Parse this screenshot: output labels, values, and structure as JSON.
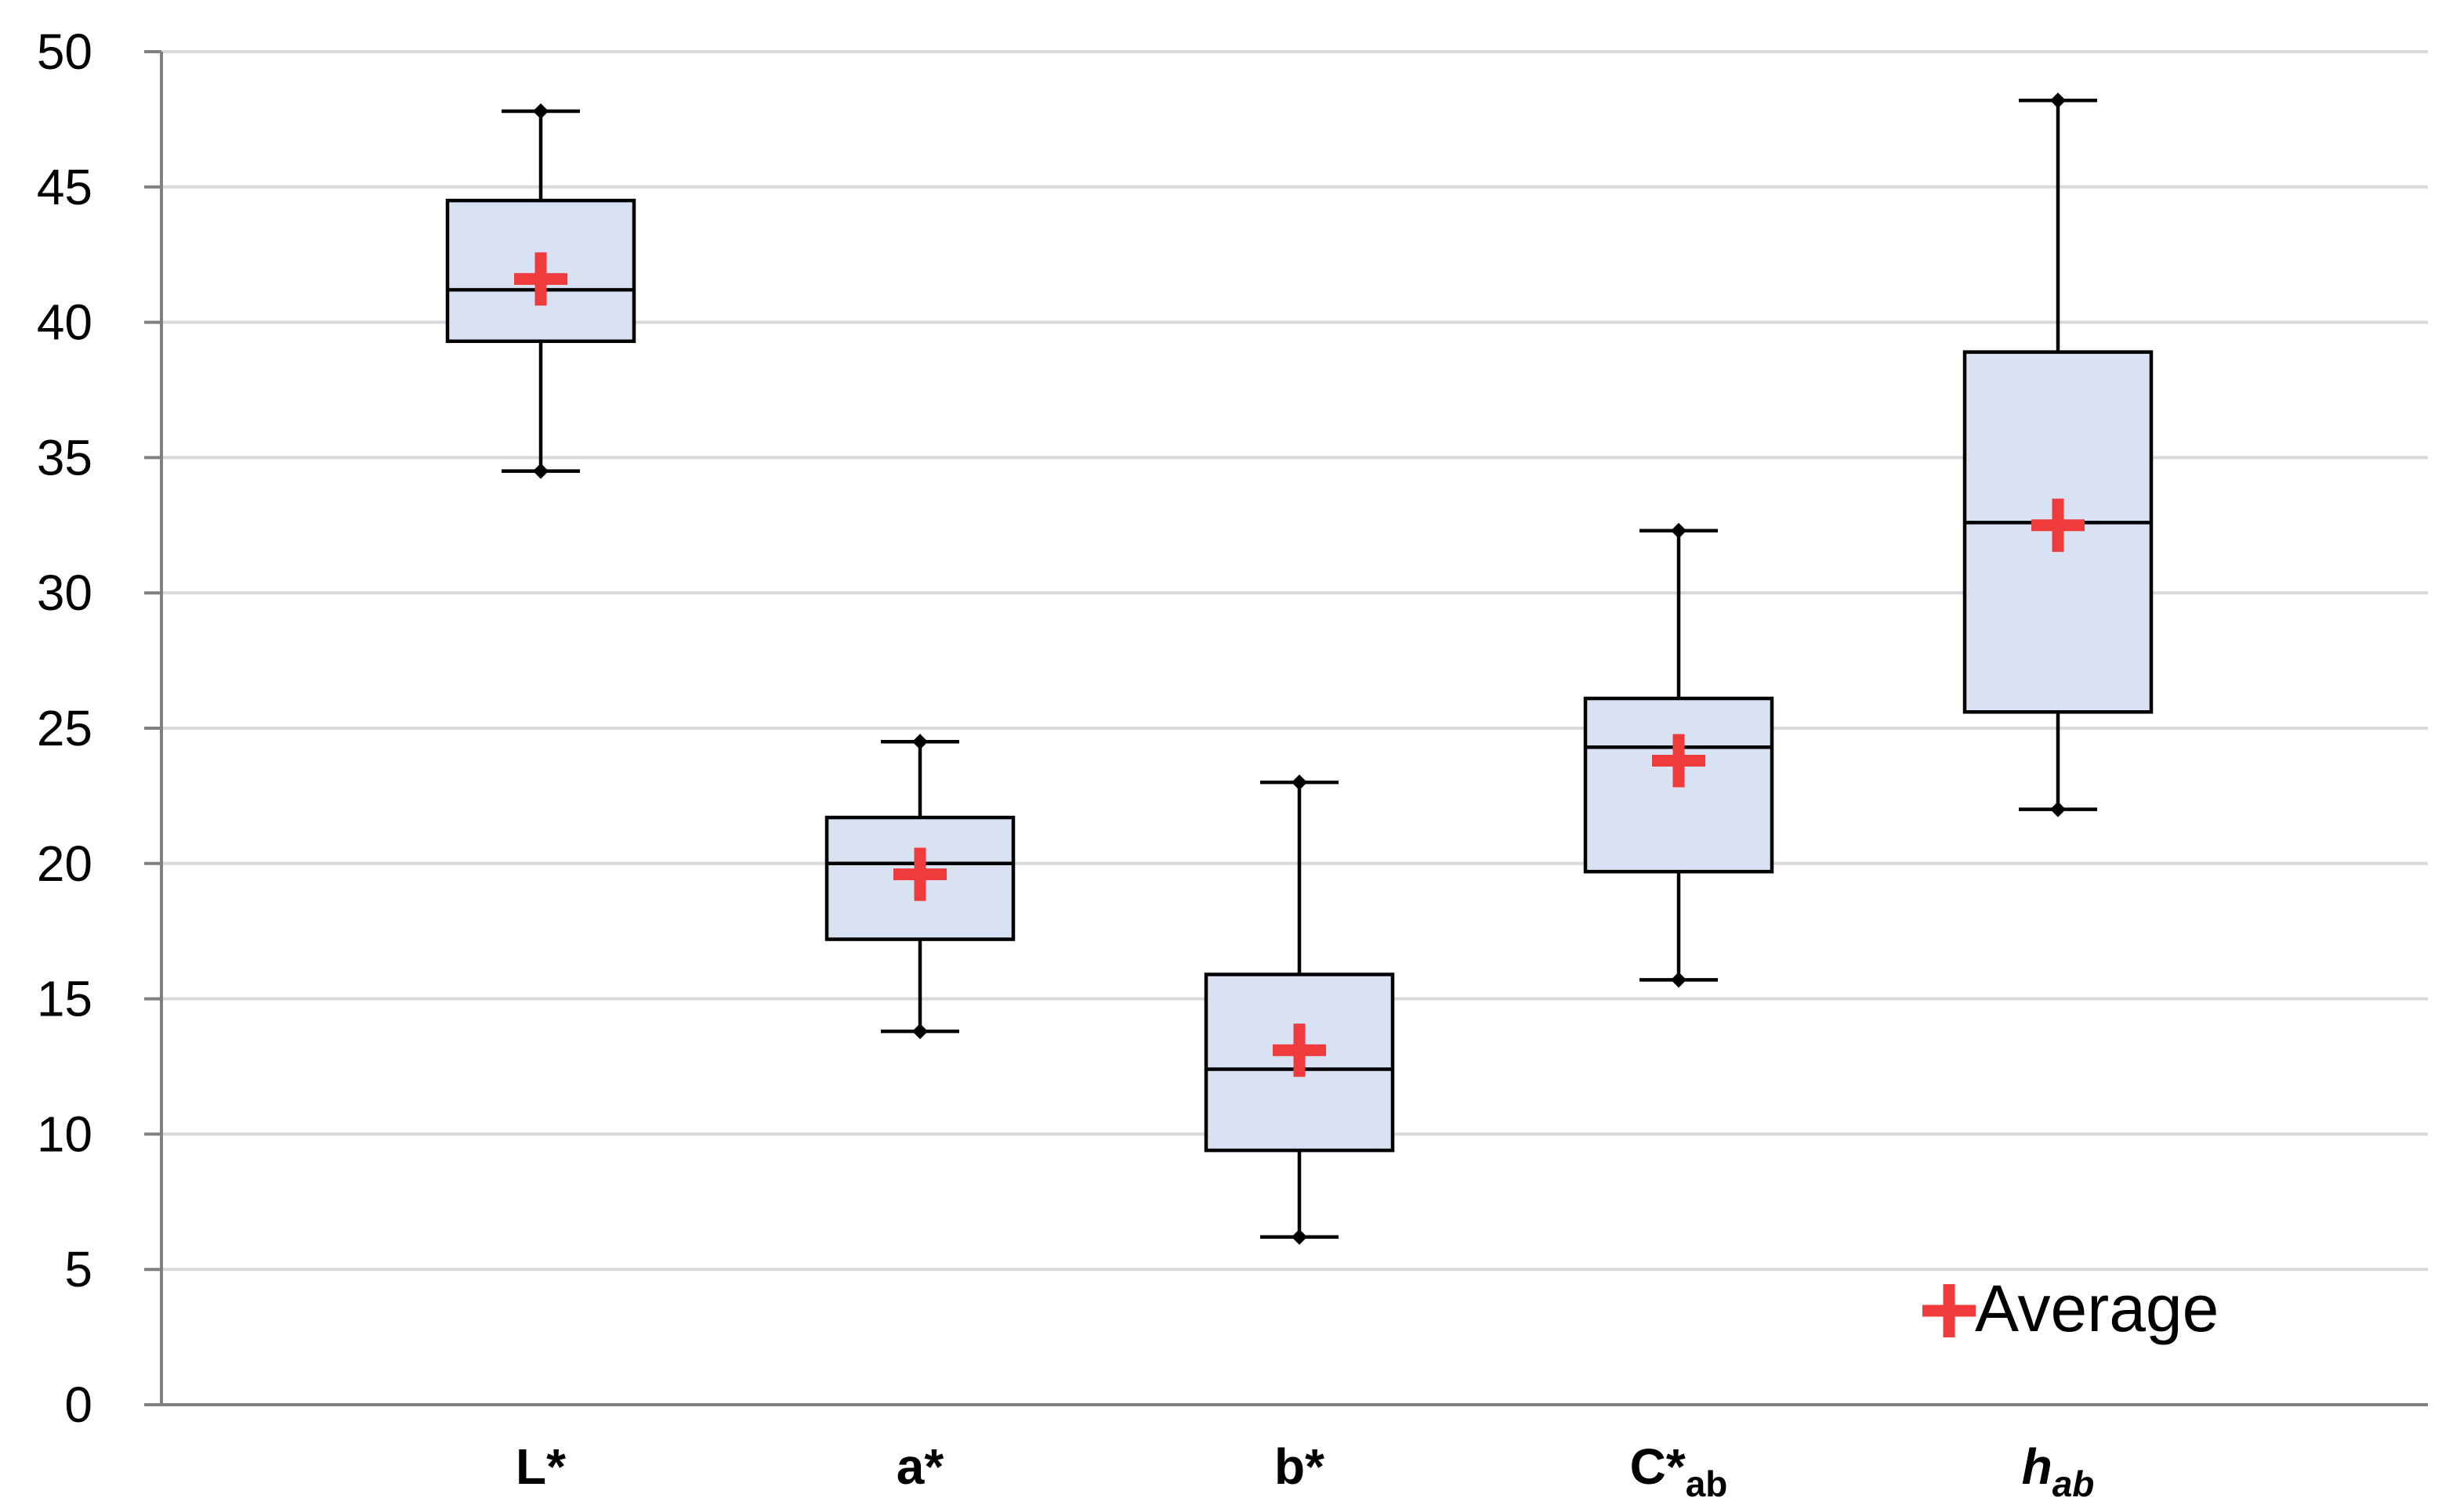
{
  "chart_data": {
    "type": "boxplot",
    "title": "",
    "xlabel": "",
    "ylabel": "",
    "ylim": [
      0,
      50
    ],
    "yticks": [
      0,
      5,
      10,
      15,
      20,
      25,
      30,
      35,
      40,
      45,
      50
    ],
    "grid": true,
    "legend": {
      "position": "bottom-right",
      "label": "Average"
    },
    "categories": [
      {
        "main": "L*",
        "sub": "",
        "italic": false
      },
      {
        "main": "a*",
        "sub": "",
        "italic": false
      },
      {
        "main": "b*",
        "sub": "",
        "italic": false
      },
      {
        "main": "C*",
        "sub": "ab",
        "italic": false
      },
      {
        "main": "h",
        "sub": "ab",
        "italic": true
      }
    ],
    "boxes": [
      {
        "min": 34.5,
        "q1": 39.3,
        "median": 41.2,
        "q3": 44.5,
        "max": 47.8,
        "mean": 41.6
      },
      {
        "min": 13.8,
        "q1": 17.2,
        "median": 20.0,
        "q3": 21.7,
        "max": 24.5,
        "mean": 19.6
      },
      {
        "min": 6.2,
        "q1": 9.4,
        "median": 12.4,
        "q3": 15.9,
        "max": 23.0,
        "mean": 13.1
      },
      {
        "min": 15.7,
        "q1": 19.7,
        "median": 24.3,
        "q3": 26.1,
        "max": 32.3,
        "mean": 23.8
      },
      {
        "min": 22.0,
        "q1": 25.6,
        "median": 32.6,
        "q3": 38.9,
        "max": 48.2,
        "mean": 32.5
      }
    ],
    "colors": {
      "box_fill": "#d9e2f3",
      "box_stroke": "#000000",
      "mean_marker": "#ef3b3b",
      "grid": "#d9d9d9",
      "axis": "#808080"
    }
  }
}
